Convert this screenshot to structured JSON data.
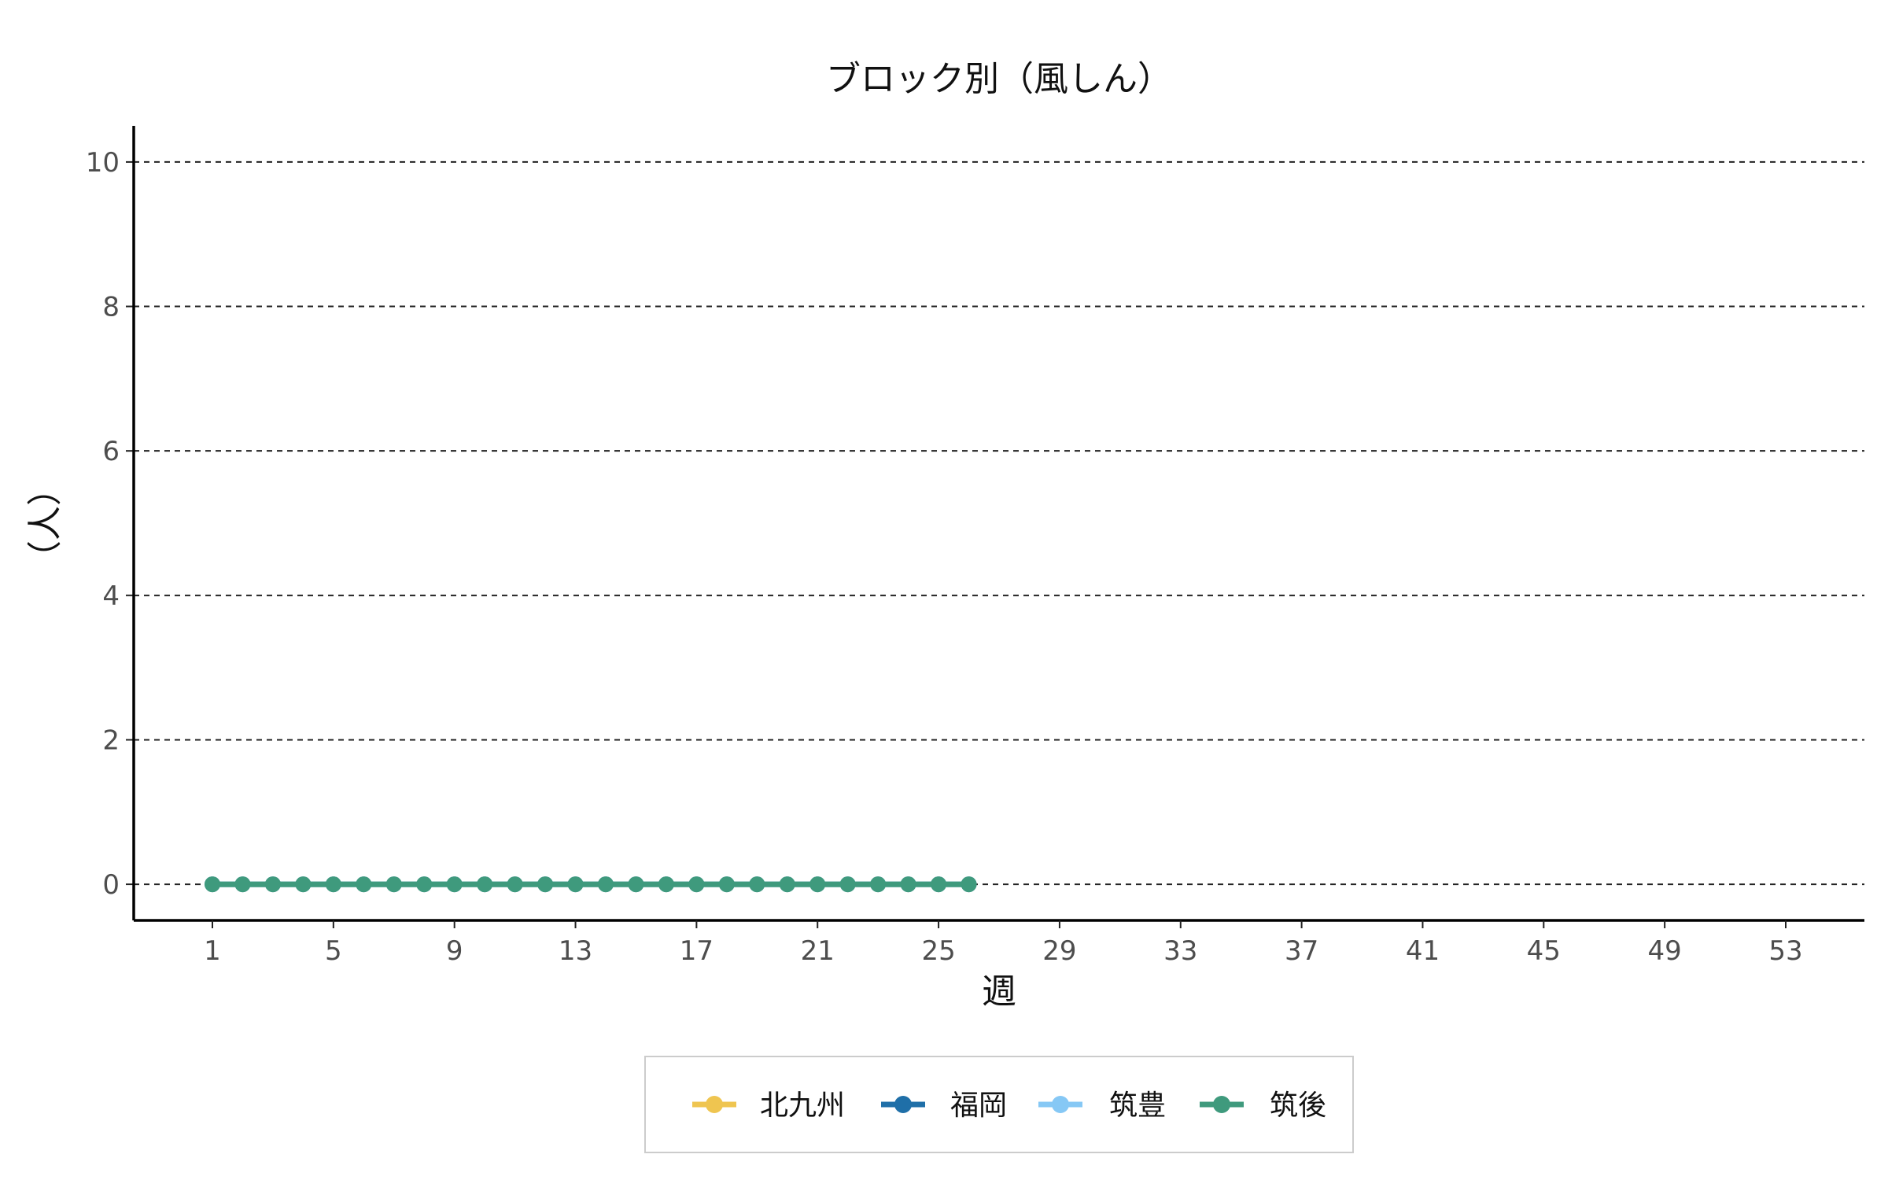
{
  "chart_data": {
    "type": "line",
    "title": "ブロック別（風しん）",
    "xlabel": "週",
    "ylabel": "（人）",
    "x_ticks": [
      1,
      5,
      9,
      13,
      17,
      21,
      25,
      29,
      33,
      37,
      41,
      45,
      49,
      53
    ],
    "y_ticks": [
      0,
      2,
      4,
      6,
      8,
      10
    ],
    "xlim": [
      -1.6,
      55.6
    ],
    "ylim": [
      -0.5,
      10.5
    ],
    "grid": "horizontal-dashed",
    "legend_position": "bottom",
    "x": [
      1,
      2,
      3,
      4,
      5,
      6,
      7,
      8,
      9,
      10,
      11,
      12,
      13,
      14,
      15,
      16,
      17,
      18,
      19,
      20,
      21,
      22,
      23,
      24,
      25,
      26
    ],
    "series": [
      {
        "name": "北九州",
        "color": "#efc550",
        "values": [
          0,
          0,
          0,
          0,
          0,
          0,
          0,
          0,
          0,
          0,
          0,
          0,
          0,
          0,
          0,
          0,
          0,
          0,
          0,
          0,
          0,
          0,
          0,
          0,
          0,
          0
        ]
      },
      {
        "name": "福岡",
        "color": "#1f6fa8",
        "values": [
          0,
          0,
          0,
          0,
          0,
          0,
          0,
          0,
          0,
          0,
          0,
          0,
          0,
          0,
          0,
          0,
          0,
          0,
          0,
          0,
          0,
          0,
          0,
          0,
          0,
          0
        ]
      },
      {
        "name": "筑豊",
        "color": "#86c8f5",
        "values": [
          0,
          0,
          0,
          0,
          0,
          0,
          0,
          0,
          0,
          0,
          0,
          0,
          0,
          0,
          0,
          0,
          0,
          0,
          0,
          0,
          0,
          0,
          0,
          0,
          0,
          0
        ]
      },
      {
        "name": "筑後",
        "color": "#3f9a7d",
        "values": [
          0,
          0,
          0,
          0,
          0,
          0,
          0,
          0,
          0,
          0,
          0,
          0,
          0,
          0,
          0,
          0,
          0,
          0,
          0,
          0,
          0,
          0,
          0,
          0,
          0,
          0
        ]
      }
    ]
  }
}
